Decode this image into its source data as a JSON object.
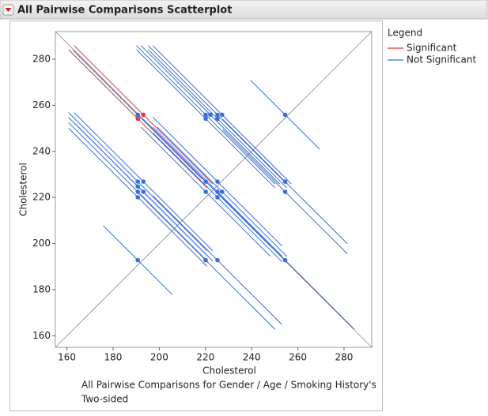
{
  "chart_data": {
    "type": "scatter",
    "title": "All Pairwise Comparisons Scatterplot",
    "x_label": "Cholesterol",
    "y_label": "Cholesterol",
    "caption": [
      "All Pairwise Comparisons for Gender / Age / Smoking History's",
      "Two-sided"
    ],
    "legend_title": "Legend",
    "legend": "right",
    "xlim": [
      155,
      292
    ],
    "ylim": [
      155,
      292
    ],
    "xticks": [
      160,
      180,
      200,
      220,
      240,
      260,
      280
    ],
    "yticks": [
      160,
      180,
      200,
      220,
      240,
      260,
      280
    ],
    "series": [
      {
        "name": "Significant",
        "color": "#e8323c",
        "x": [
          190.7,
          193.1
        ],
        "y": [
          254.2,
          255.9
        ],
        "half_width": [
          30,
          30
        ]
      },
      {
        "name": "Not Significant",
        "color": "#3a6fd8",
        "x": [
          190.7,
          220.1,
          222.1,
          225.2,
          227.2,
          220.1,
          225.2,
          254.5,
          190.7,
          193.1,
          190.7,
          190.7,
          193.1,
          190.7,
          220.1,
          225.2,
          220.1,
          225.2,
          227.2,
          225.2,
          254.5,
          254.5,
          190.7,
          220.1,
          225.2,
          254.5
        ],
        "y": [
          255.9,
          255.9,
          255.9,
          255.9,
          255.9,
          254.2,
          254.2,
          255.9,
          226.9,
          226.9,
          224.8,
          222.5,
          222.5,
          220.1,
          226.9,
          226.9,
          222.5,
          222.5,
          222.5,
          220.1,
          226.9,
          222.5,
          192.8,
          192.8,
          192.8,
          192.8
        ],
        "half_width": [
          28,
          30,
          30,
          30,
          30,
          30,
          30,
          15,
          30,
          30,
          30,
          30,
          30,
          30,
          28,
          28,
          28,
          28,
          28,
          28,
          27,
          27,
          15,
          30,
          28,
          30
        ]
      }
    ]
  }
}
